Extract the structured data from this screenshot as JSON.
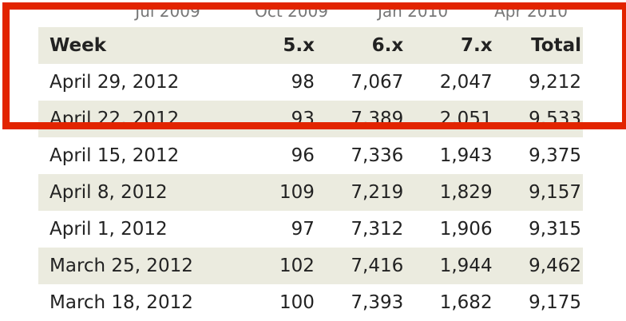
{
  "axis_labels": [
    "Jul 2009",
    "Oct 2009",
    "Jan 2010",
    "Apr 2010"
  ],
  "table": {
    "headers": [
      "Week",
      "5.x",
      "6.x",
      "7.x",
      "Total"
    ],
    "rows": [
      [
        "April 29, 2012",
        "98",
        "7,067",
        "2,047",
        "9,212"
      ],
      [
        "April 22, 2012",
        "93",
        "7,389",
        "2,051",
        "9,533"
      ],
      [
        "April 15, 2012",
        "96",
        "7,336",
        "1,943",
        "9,375"
      ],
      [
        "April 8, 2012",
        "109",
        "7,219",
        "1,829",
        "9,157"
      ],
      [
        "April 1, 2012",
        "97",
        "7,312",
        "1,906",
        "9,315"
      ],
      [
        "March 25, 2012",
        "102",
        "7,416",
        "1,944",
        "9,462"
      ],
      [
        "March 18, 2012",
        "100",
        "7,393",
        "1,682",
        "9,175"
      ]
    ]
  },
  "highlight_color": "#e22400"
}
